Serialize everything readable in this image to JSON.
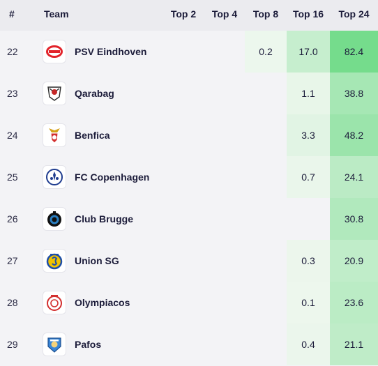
{
  "header": {
    "rank": "#",
    "team": "Team",
    "top2": "Top 2",
    "top4": "Top 4",
    "top8": "Top 8",
    "top16": "Top 16",
    "top24": "Top 24"
  },
  "rows": [
    {
      "rank": "22",
      "team": "PSV Eindhoven",
      "crest_icon": "psv-crest-icon",
      "top8": "0.2",
      "top16": "17.0",
      "top24": "82.4"
    },
    {
      "rank": "23",
      "team": "Qarabag",
      "crest_icon": "qarabag-crest-icon",
      "top8": "",
      "top16": "1.1",
      "top24": "38.8"
    },
    {
      "rank": "24",
      "team": "Benfica",
      "crest_icon": "benfica-crest-icon",
      "top8": "",
      "top16": "3.3",
      "top24": "48.2"
    },
    {
      "rank": "25",
      "team": "FC Copenhagen",
      "crest_icon": "fc-copenhagen-crest-icon",
      "top8": "",
      "top16": "0.7",
      "top24": "24.1"
    },
    {
      "rank": "26",
      "team": "Club Brugge",
      "crest_icon": "club-brugge-crest-icon",
      "top8": "",
      "top16": "",
      "top24": "30.8"
    },
    {
      "rank": "27",
      "team": "Union SG",
      "crest_icon": "union-sg-crest-icon",
      "top8": "",
      "top16": "0.3",
      "top24": "20.9"
    },
    {
      "rank": "28",
      "team": "Olympiacos",
      "crest_icon": "olympiacos-crest-icon",
      "top8": "",
      "top16": "0.1",
      "top24": "23.6"
    },
    {
      "rank": "29",
      "team": "Pafos",
      "crest_icon": "pafos-crest-icon",
      "top8": "",
      "top16": "0.4",
      "top24": "21.1"
    }
  ],
  "colors": {
    "heat_scale_low": "#eef7ee",
    "heat_scale_high": "#72db8a",
    "background": "#f3f3f6",
    "header_bg": "#ebebef"
  }
}
